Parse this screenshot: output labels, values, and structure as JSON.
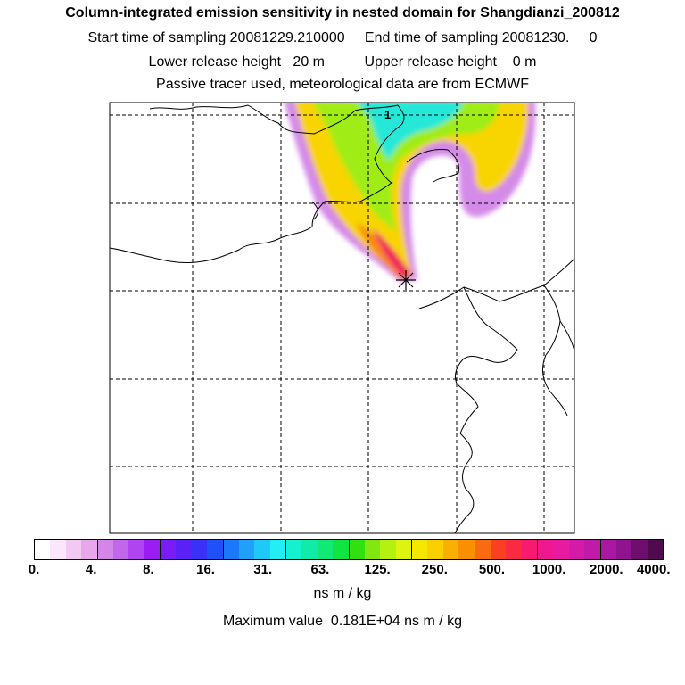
{
  "header": {
    "title": "Column-integrated emission sensitivity in nested domain for Shangdianzi_200812",
    "sampling": "Start time of sampling 20081229.210000     End time of sampling 20081230.     0",
    "release": "Lower release height   20 m          Upper release height    0 m",
    "tracer": "Passive tracer used, meteorological data are from ECMWF"
  },
  "map": {
    "station_marker": "asterisk",
    "number_label": "1",
    "grid": true
  },
  "colorbar": {
    "tick_labels": [
      "0.",
      "4.",
      "8.",
      "16.",
      "31.",
      "63.",
      "125.",
      "250.",
      "500.",
      "1000.",
      "2000.",
      "4000."
    ],
    "unit": "ns m / kg",
    "colors": [
      "#ffffff",
      "#fbe6fb",
      "#f3c8f3",
      "#e8a6ec",
      "#d486e8",
      "#c266ec",
      "#b044f0",
      "#9a1ef4",
      "#7a1cf6",
      "#5a20f6",
      "#3a30f8",
      "#2050fa",
      "#1c78fa",
      "#20a0fa",
      "#20c8f8",
      "#22eef4",
      "#14f0d0",
      "#10eca8",
      "#10e878",
      "#10e440",
      "#30e010",
      "#80e810",
      "#b4f010",
      "#dcf410",
      "#f4e800",
      "#fad000",
      "#fab000",
      "#fa9000",
      "#fa6a10",
      "#fa4020",
      "#fa2a40",
      "#f81a70",
      "#f01890",
      "#e81aa0",
      "#d41aa8",
      "#c01aa8",
      "#a818a0",
      "#901490",
      "#700e70",
      "#500a50"
    ]
  },
  "footer": {
    "max_value": "Maximum value  0.181E+04 ns m / kg"
  }
}
